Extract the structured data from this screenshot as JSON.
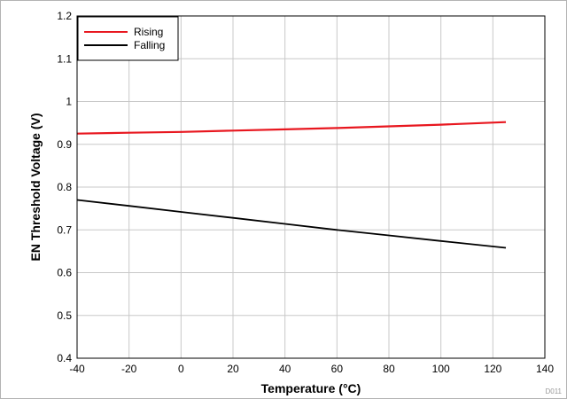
{
  "chart_data": {
    "type": "line",
    "title": "",
    "xlabel": "Temperature (°C)",
    "ylabel": "EN Threshold Voltage (V)",
    "xlim": [
      -40,
      140
    ],
    "ylim": [
      0.4,
      1.2
    ],
    "xticks": [
      -40,
      -20,
      0,
      20,
      40,
      60,
      80,
      100,
      120,
      140
    ],
    "yticks": [
      0.4,
      0.5,
      0.6,
      0.7,
      0.8,
      0.9,
      1.0,
      1.1,
      1.2
    ],
    "xtick_labels": [
      "-40",
      "-20",
      "0",
      "20",
      "40",
      "60",
      "80",
      "100",
      "120",
      "140"
    ],
    "ytick_labels": [
      "0.4",
      "0.5",
      "0.6",
      "0.7",
      "0.8",
      "0.9",
      "1",
      "1.1",
      "1.2"
    ],
    "grid": true,
    "legend_position": "top-left",
    "series": [
      {
        "name": "Rising",
        "color": "#e8171f",
        "x": [
          -40,
          -20,
          0,
          20,
          40,
          60,
          80,
          100,
          125
        ],
        "y": [
          0.925,
          0.927,
          0.929,
          0.932,
          0.935,
          0.938,
          0.942,
          0.946,
          0.952
        ]
      },
      {
        "name": "Falling",
        "color": "#000000",
        "x": [
          -40,
          -20,
          0,
          20,
          40,
          60,
          80,
          100,
          125
        ],
        "y": [
          0.77,
          0.756,
          0.742,
          0.728,
          0.714,
          0.7,
          0.687,
          0.674,
          0.658
        ]
      }
    ]
  },
  "figure_id": "D011",
  "colors": {
    "grid": "#c8c8c8",
    "axis": "#000000"
  }
}
